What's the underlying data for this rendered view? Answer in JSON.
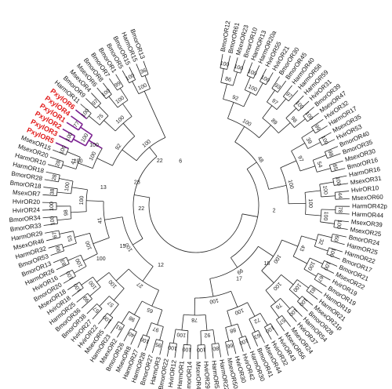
{
  "tree": {
    "highlight_color": "#e21b1b",
    "highlight_branch_color": "#7a2090",
    "leaves": [
      "BmorOR12",
      "BmorOR61",
      "MsexOR23",
      "BmorOR10",
      "HarmOR13",
      "HarmOR20a",
      "HvirOR55",
      "HvirOR21",
      "BmorOR30",
      "BmorOR45",
      "HarmOR40",
      "HarmOR58",
      "HarmOR59",
      "HvirOR31",
      "BmorOR39",
      "MsexOR47",
      "HvirOR32",
      "HarmOR17",
      "MsexOR35",
      "HvirOR53",
      "BmorOR40",
      "BmorOR35",
      "MsexOR30",
      "BmorOR16",
      "HarmOR16",
      "MsexOR31",
      "HvirOR10",
      "MsexOR60",
      "HarmOR42p",
      "HarmOR44",
      "MsexOR39",
      "MsexOR25",
      "BmorOR24",
      "HarmOR25",
      "HarmOR22",
      "BmorOR17",
      "BmorOR21",
      "MsexOR22",
      "HvirOR19",
      "BmorOR19",
      "HarmOR19",
      "HarmOR21",
      "MsexOR21p",
      "BmorOR28",
      "HarmOR54",
      "HvirOR37",
      "MsexOR24",
      "MsexOR56",
      "HvirOR43",
      "HvirOR32",
      "MsexOR44",
      "BmorOR41",
      "HarmOR30",
      "HvirOR42",
      "HvirOR30",
      "MsexOR50",
      "HarmOR22",
      "HarmOR51",
      "HvirOR29",
      "MsexOR42",
      "BmorOR14",
      "HarmOR1",
      "HvirOR12",
      "BmorOR22",
      "HarmOR3",
      "BmorOR27",
      "HarmOR28",
      "HarmOR27",
      "MsexOR8",
      "BmorOR26",
      "MsexOR2",
      "HarmOR23",
      "MsexOR5",
      "HvirOR22",
      "HvirOR27",
      "BmorOR38",
      "BmorOR36",
      "HarmOR25",
      "HvirOR18",
      "MsexOR18",
      "BmorOR20",
      "HvirOR16",
      "HarmOR26",
      "BmorOR13",
      "BmorOR53",
      "HarmOR32",
      "MsexOR46",
      "HarmOR29",
      "BmorOR33",
      "BmorOR34",
      "HvirOR24",
      "HvirOR20",
      "MsexOR7",
      "BmorOR18",
      "BmorOR28",
      "HarmOR18",
      "HarmOR10",
      "MsexOR20",
      "MsexOR15",
      "PxylOR5",
      "PxylOR3",
      "PxylOR2",
      "PxylOR1",
      "PxylOR4",
      "PxylOR6",
      "HarmOR11",
      "BmorOR9",
      "MsexOR4",
      "MsexOR6",
      "BmorOR8",
      "BmorOR7",
      "BmorOR1",
      "BmorOR5",
      "BmorOR15",
      "HarmOR15",
      "BmorOR13"
    ],
    "highlighted_leaves": [
      "PxylOR5",
      "PxylOR3",
      "PxylOR2",
      "PxylOR1",
      "PxylOR4",
      "PxylOR6"
    ],
    "bootstrap_values": [
      "100",
      "100",
      "100",
      "100",
      "93",
      "97",
      "100",
      "100",
      "99",
      "100",
      "98",
      "85",
      "100",
      "44",
      "78",
      "100",
      "60",
      "100",
      "100",
      "67",
      "81",
      "100",
      "100",
      "57",
      "100",
      "63",
      "100",
      "66",
      "80",
      "100",
      "100",
      "100",
      "95",
      "100",
      "40",
      "61",
      "100",
      "57",
      "99",
      "100",
      "100",
      "83",
      "99",
      "67",
      "100",
      "100",
      "38",
      "28",
      "28",
      "100",
      "100",
      "77",
      "100",
      "97",
      "100",
      "99",
      "100",
      "36",
      "86",
      "100",
      "97",
      "98",
      "39",
      "54",
      "100",
      "100",
      "32",
      "100",
      "100",
      "76",
      "72",
      "88",
      "92",
      "100",
      "97",
      "98",
      "57",
      "100",
      "100",
      "53",
      "98",
      "100",
      "41",
      "100",
      "75",
      "100",
      "100",
      "92",
      "89",
      "97",
      "100",
      "43",
      "100",
      "100",
      "78",
      "65",
      "100",
      "100",
      "100",
      "100",
      "100",
      "100",
      "100",
      "100",
      "100",
      "27",
      "41",
      "92",
      "48",
      "99",
      "100",
      "100",
      "39",
      "95",
      "52",
      "60",
      "84",
      "100",
      "100",
      "100",
      "100"
    ],
    "internal_support": [
      "22",
      "6",
      "22",
      "12",
      "2",
      "28",
      "15",
      "13",
      "17",
      "18",
      "100",
      "100",
      "100"
    ]
  }
}
